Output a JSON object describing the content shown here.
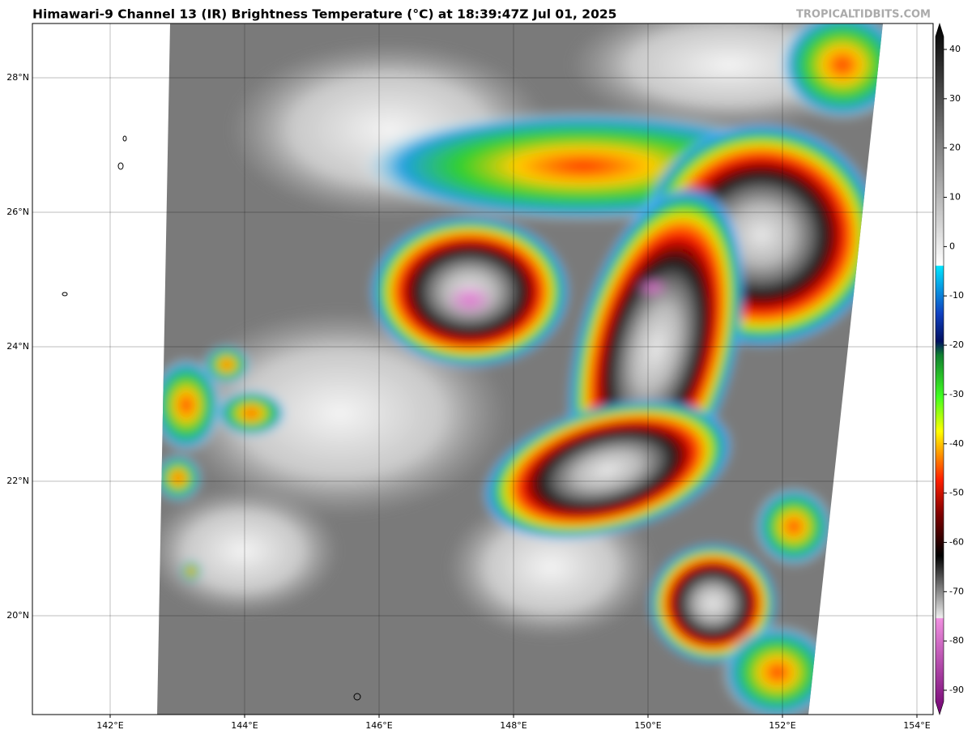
{
  "header": {
    "title": "Himawari-9 Channel 13 (IR) Brightness Temperature (°C) at 18:39:47Z Jul 01, 2025",
    "source": "TROPICALTIDBITS.COM"
  },
  "map": {
    "latitude_labels": [
      "28°N",
      "26°N",
      "24°N",
      "22°N",
      "20°N"
    ],
    "longitude_labels": [
      "142°E",
      "144°E",
      "146°E",
      "148°E",
      "150°E",
      "152°E",
      "154°E"
    ]
  },
  "colorbar": {
    "ticks": [
      40,
      30,
      20,
      10,
      0,
      -10,
      -20,
      -30,
      -40,
      -50,
      -60,
      -70,
      -80,
      -90
    ]
  }
}
